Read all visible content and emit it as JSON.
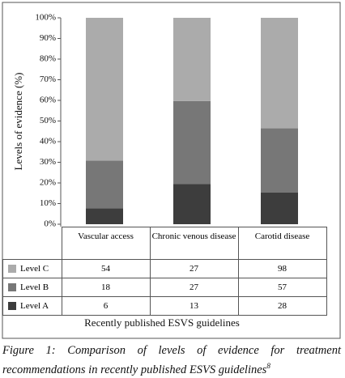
{
  "chart_data": {
    "type": "bar",
    "stacking": "percent",
    "y_label": "Levels of evidence (%)",
    "x_label": "Recently published ESVS guidelines",
    "categories": [
      "Vascular access",
      "Chronic venous disease",
      "Carotid disease"
    ],
    "series": [
      {
        "name": "Level A",
        "color": "#3d3d3d",
        "values": [
          6,
          13,
          28
        ]
      },
      {
        "name": "Level B",
        "color": "#777777",
        "values": [
          18,
          27,
          57
        ]
      },
      {
        "name": "Level C",
        "color": "#ababab",
        "values": [
          54,
          27,
          98
        ]
      }
    ],
    "ylim": [
      0,
      100
    ],
    "yticks": [
      {
        "value": 0,
        "label": "0%"
      },
      {
        "value": 10,
        "label": "10%"
      },
      {
        "value": 20,
        "label": "20%"
      },
      {
        "value": 30,
        "label": "30%"
      },
      {
        "value": 40,
        "label": "40%"
      },
      {
        "value": 50,
        "label": "50%"
      },
      {
        "value": 60,
        "label": "60%"
      },
      {
        "value": 70,
        "label": "70%"
      },
      {
        "value": 80,
        "label": "80%"
      },
      {
        "value": 90,
        "label": "90%"
      },
      {
        "value": 100,
        "label": "100%"
      }
    ],
    "grid": false,
    "caption": "Figure 1: Comparison of levels of evidence for treatment recommendations in recently published ESVS guidelines",
    "caption_ref": "8"
  }
}
